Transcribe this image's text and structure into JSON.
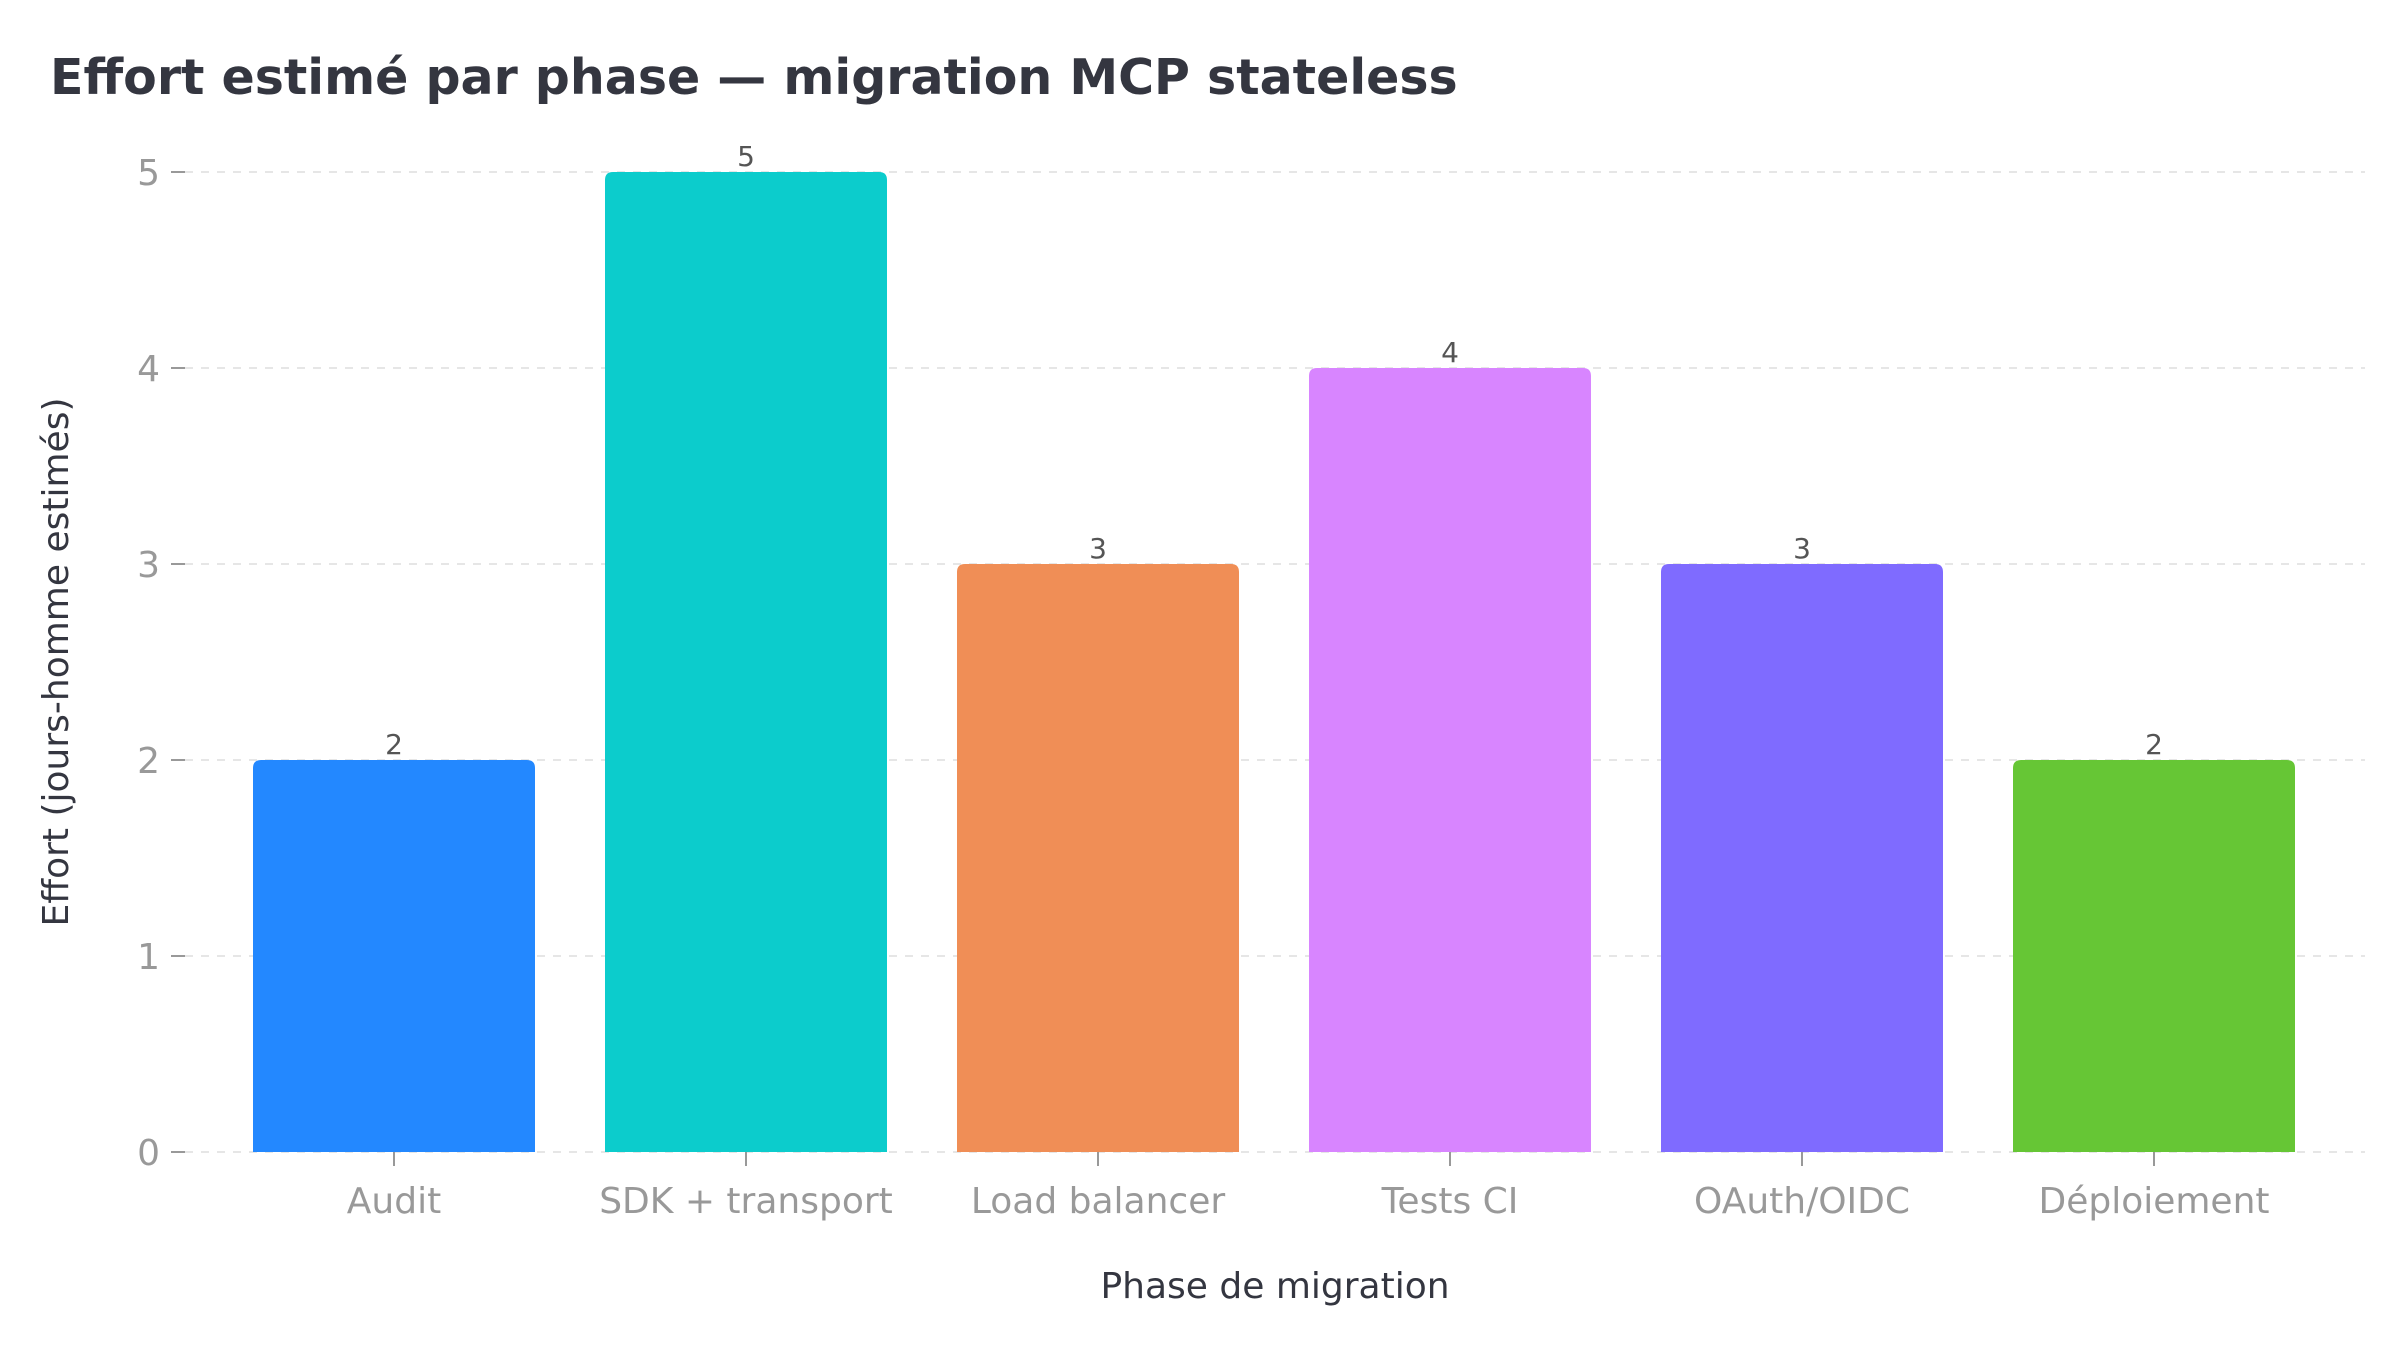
{
  "chart_data": {
    "type": "bar",
    "title": "Effort estimé par phase — migration MCP stateless",
    "xlabel": "Phase de migration",
    "ylabel": "Effort (jours-homme estimés)",
    "categories": [
      "Audit",
      "SDK + transport",
      "Load balancer",
      "Tests CI",
      "OAuth/OIDC",
      "Déploiement"
    ],
    "values": [
      2,
      5,
      3,
      4,
      3,
      2
    ],
    "colors": [
      "#2388ff",
      "#0ccccc",
      "#f08e56",
      "#d885ff",
      "#7f6bff",
      "#66c635"
    ],
    "ylim": [
      0,
      5
    ],
    "yticks": [
      0,
      1,
      2,
      3,
      4,
      5
    ],
    "grid": true,
    "show_value_labels": true
  }
}
